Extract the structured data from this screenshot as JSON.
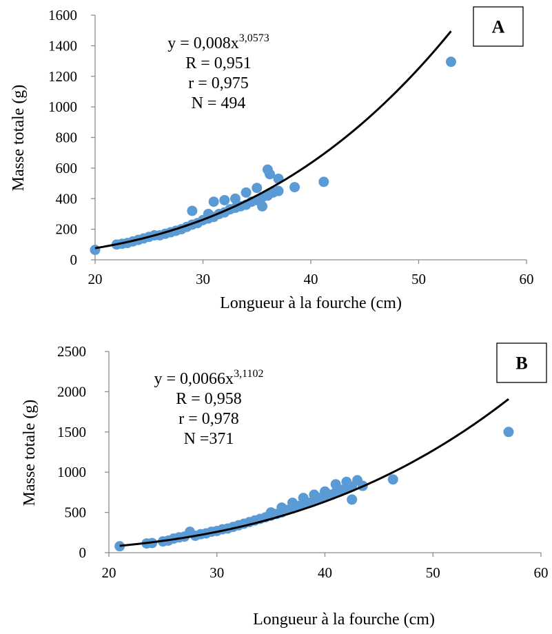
{
  "chart_data": [
    {
      "type": "scatter",
      "panel_label": "A",
      "xlabel": "Longueur à la fourche (cm)",
      "ylabel": "Masse totale (g)",
      "xlim": [
        20,
        60
      ],
      "ylim": [
        0,
        1600
      ],
      "xticks": [
        20,
        30,
        40,
        50,
        60
      ],
      "yticks": [
        0,
        200,
        400,
        600,
        800,
        1000,
        1200,
        1400,
        1600
      ],
      "grid": false,
      "marker_color": "#5b9bd5",
      "trendline_color": "#000000",
      "annotation": {
        "equation_base": "y = 0,008x",
        "equation_exponent": "3,0573",
        "R": "R = 0,951",
        "r": "r = 0,975",
        "N": "N = 494"
      },
      "trendline": {
        "a": 0.008,
        "b": 3.0573,
        "x_range": [
          20,
          53
        ]
      },
      "series": [
        {
          "points": [
            [
              20,
              65
            ],
            [
              22,
              100
            ],
            [
              22.5,
              105
            ],
            [
              23,
              110
            ],
            [
              23.5,
              120
            ],
            [
              24,
              130
            ],
            [
              24.5,
              140
            ],
            [
              25,
              150
            ],
            [
              25.5,
              160
            ],
            [
              26,
              160
            ],
            [
              26.5,
              170
            ],
            [
              27,
              180
            ],
            [
              27.5,
              190
            ],
            [
              28,
              200
            ],
            [
              28.5,
              215
            ],
            [
              29,
              230
            ],
            [
              29,
              320
            ],
            [
              29.5,
              240
            ],
            [
              30,
              260
            ],
            [
              30.5,
              270
            ],
            [
              30.5,
              300
            ],
            [
              31,
              280
            ],
            [
              31,
              380
            ],
            [
              31.5,
              300
            ],
            [
              32,
              310
            ],
            [
              32,
              390
            ],
            [
              32.5,
              330
            ],
            [
              33,
              340
            ],
            [
              33,
              400
            ],
            [
              33.5,
              350
            ],
            [
              34,
              360
            ],
            [
              34,
              440
            ],
            [
              34.5,
              380
            ],
            [
              35,
              390
            ],
            [
              35,
              470
            ],
            [
              35.5,
              410
            ],
            [
              35.5,
              350
            ],
            [
              36,
              420
            ],
            [
              36,
              590
            ],
            [
              36.2,
              560
            ],
            [
              36.5,
              440
            ],
            [
              37,
              450
            ],
            [
              37,
              530
            ],
            [
              38.5,
              475
            ],
            [
              41.2,
              510
            ],
            [
              53,
              1295
            ]
          ]
        }
      ]
    },
    {
      "type": "scatter",
      "panel_label": "B",
      "xlabel": "Longueur à la fourche (cm)",
      "ylabel": "Masse totale (g)",
      "xlim": [
        20,
        60
      ],
      "ylim": [
        0,
        2500
      ],
      "xticks": [
        20,
        30,
        40,
        50,
        60
      ],
      "yticks": [
        0,
        500,
        1000,
        1500,
        2000,
        2500
      ],
      "grid": false,
      "marker_color": "#5b9bd5",
      "trendline_color": "#000000",
      "annotation": {
        "equation_base": "y = 0,0066x",
        "equation_exponent": "3,1102",
        "R": "R = 0,958",
        "r": "r = 0,978",
        "N": "N =371"
      },
      "trendline": {
        "a": 0.0066,
        "b": 3.1102,
        "x_range": [
          21,
          57
        ]
      },
      "series": [
        {
          "points": [
            [
              21,
              80
            ],
            [
              23.5,
              115
            ],
            [
              24,
              120
            ],
            [
              25,
              140
            ],
            [
              25.5,
              150
            ],
            [
              26,
              175
            ],
            [
              26.5,
              190
            ],
            [
              27,
              200
            ],
            [
              27.5,
              260
            ],
            [
              28,
              210
            ],
            [
              28.5,
              230
            ],
            [
              29,
              240
            ],
            [
              29.5,
              260
            ],
            [
              30,
              270
            ],
            [
              30.5,
              290
            ],
            [
              31,
              300
            ],
            [
              31.5,
              320
            ],
            [
              32,
              340
            ],
            [
              32.5,
              360
            ],
            [
              33,
              380
            ],
            [
              33.5,
              400
            ],
            [
              34,
              420
            ],
            [
              34.5,
              440
            ],
            [
              35,
              460
            ],
            [
              35,
              500
            ],
            [
              35.5,
              480
            ],
            [
              36,
              500
            ],
            [
              36,
              560
            ],
            [
              36.5,
              530
            ],
            [
              37,
              550
            ],
            [
              37,
              620
            ],
            [
              37.5,
              580
            ],
            [
              38,
              600
            ],
            [
              38,
              680
            ],
            [
              38.5,
              620
            ],
            [
              39,
              650
            ],
            [
              39,
              720
            ],
            [
              39.5,
              680
            ],
            [
              40,
              700
            ],
            [
              40,
              760
            ],
            [
              40.5,
              720
            ],
            [
              41,
              750
            ],
            [
              41,
              850
            ],
            [
              41.5,
              780
            ],
            [
              42,
              800
            ],
            [
              42,
              880
            ],
            [
              42.5,
              820
            ],
            [
              42.5,
              660
            ],
            [
              43,
              900
            ],
            [
              43.5,
              830
            ],
            [
              46.3,
              910
            ],
            [
              57,
              1500
            ]
          ]
        }
      ]
    }
  ]
}
